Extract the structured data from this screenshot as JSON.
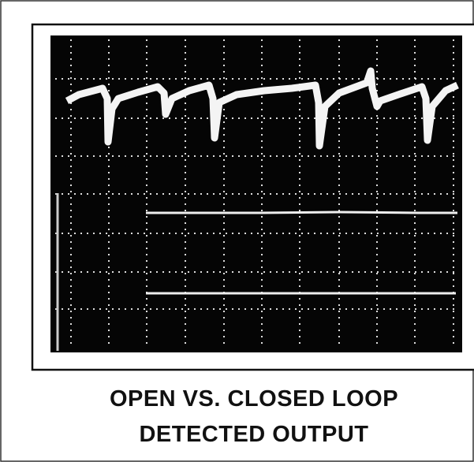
{
  "figure": {
    "caption": [
      "OPEN VS. CLOSED LOOP",
      "DETECTED OUTPUT"
    ]
  }
}
